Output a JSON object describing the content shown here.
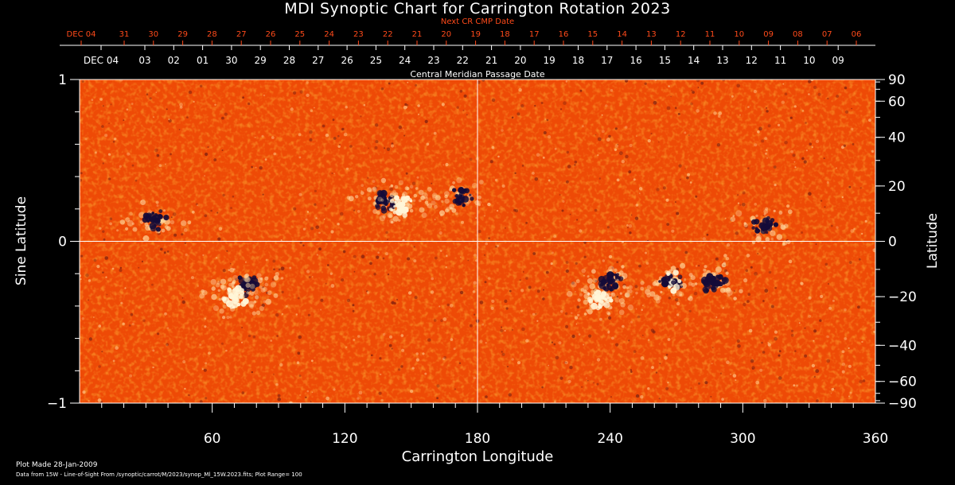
{
  "chart_data": {
    "type": "heatmap",
    "title": "MDI Synoptic Chart for Carrington Rotation 2023",
    "xlabel": "Carrington Longitude",
    "ylabel_left": "Sine Latitude",
    "ylabel_right": "Latitude",
    "xlim": [
      0,
      360
    ],
    "ylim": [
      -1,
      1
    ],
    "x_ticks": [
      60,
      120,
      180,
      240,
      300,
      360
    ],
    "y_ticks_left": [
      {
        "value": 1,
        "label": "1"
      },
      {
        "value": 0,
        "label": "0"
      },
      {
        "value": -1,
        "label": "−1"
      }
    ],
    "y_ticks_right_labels": [
      "90",
      "60",
      "40",
      "20",
      "0",
      "−20",
      "−40",
      "−60",
      "−90"
    ],
    "y_ticks_right_values": [
      90,
      60,
      40,
      20,
      0,
      -20,
      -40,
      -60,
      -90
    ],
    "next_cr_label": "Next CR CMP Date",
    "next_cr_dates": [
      "DEC 04",
      "31",
      "30",
      "29",
      "28",
      "27",
      "26",
      "25",
      "24",
      "23",
      "22",
      "21",
      "20",
      "19",
      "18",
      "17",
      "16",
      "15",
      "14",
      "13",
      "12",
      "11",
      "10",
      "09",
      "08",
      "07",
      "06"
    ],
    "cmp_label": "Central Meridian Passage Date",
    "cmp_dates": [
      "DEC 04",
      "03",
      "02",
      "01",
      "30",
      "29",
      "28",
      "27",
      "26",
      "25",
      "24",
      "23",
      "22",
      "21",
      "20",
      "19",
      "18",
      "17",
      "16",
      "15",
      "14",
      "13",
      "12",
      "11",
      "10",
      "09"
    ],
    "colorscale": {
      "background": "#ee4a06",
      "positive": "#fff6d8",
      "negative": "#140b38"
    },
    "plot_range": 100,
    "active_regions": [
      {
        "lon": 35,
        "sinlat": 0.13,
        "polarity": "negative"
      },
      {
        "lon": 76,
        "sinlat": -0.27,
        "polarity": "negative"
      },
      {
        "lon": 70,
        "sinlat": -0.35,
        "polarity": "positive"
      },
      {
        "lon": 138,
        "sinlat": 0.25,
        "polarity": "negative"
      },
      {
        "lon": 146,
        "sinlat": 0.22,
        "polarity": "positive"
      },
      {
        "lon": 172,
        "sinlat": 0.27,
        "polarity": "negative"
      },
      {
        "lon": 240,
        "sinlat": -0.25,
        "polarity": "negative"
      },
      {
        "lon": 235,
        "sinlat": -0.35,
        "polarity": "positive"
      },
      {
        "lon": 268,
        "sinlat": -0.25,
        "polarity": "mixed"
      },
      {
        "lon": 287,
        "sinlat": -0.26,
        "polarity": "negative"
      },
      {
        "lon": 310,
        "sinlat": 0.09,
        "polarity": "negative"
      }
    ]
  },
  "footer": {
    "plot_made": "Plot Made 28-Jan-2009",
    "data_source": "Data from 15W - Line-of-Sight From /synoptic/carrot/M/2023/synop_Ml_15W.2023.fits; Plot Range=  100"
  }
}
